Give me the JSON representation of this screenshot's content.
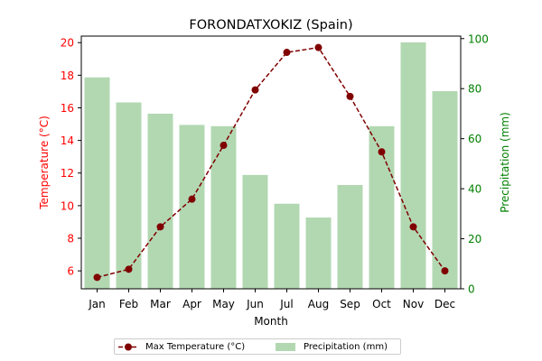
{
  "chart_data": {
    "type": "bar+line",
    "title": "FORONDATXOKIZ (Spain)",
    "xlabel": "Month",
    "categories": [
      "Jan",
      "Feb",
      "Mar",
      "Apr",
      "May",
      "Jun",
      "Jul",
      "Aug",
      "Sep",
      "Oct",
      "Nov",
      "Dec"
    ],
    "left_axis": {
      "label": "Temperature (°C)",
      "ylim": [
        4.9,
        20.4
      ],
      "ticks": [
        6,
        8,
        10,
        12,
        14,
        16,
        18,
        20
      ],
      "color": "#ff0000"
    },
    "right_axis": {
      "label": "Precipitation (mm)",
      "ylim": [
        0,
        101
      ],
      "ticks": [
        0,
        20,
        40,
        60,
        80,
        100
      ],
      "color": "#008000"
    },
    "series": [
      {
        "name": "Max Temperature (°C)",
        "type": "line",
        "axis": "left",
        "color": "#800000",
        "values": [
          5.6,
          6.1,
          8.7,
          10.4,
          13.7,
          17.1,
          19.4,
          19.7,
          16.7,
          13.3,
          8.7,
          6.0
        ]
      },
      {
        "name": "Precipitation (mm)",
        "type": "bar",
        "axis": "right",
        "color": "#b2d8b2",
        "values": [
          84.5,
          74.5,
          70.0,
          65.5,
          65.0,
          45.5,
          34.0,
          28.5,
          41.5,
          65.0,
          98.5,
          79.0
        ]
      }
    ],
    "legend": "bottom-center"
  }
}
